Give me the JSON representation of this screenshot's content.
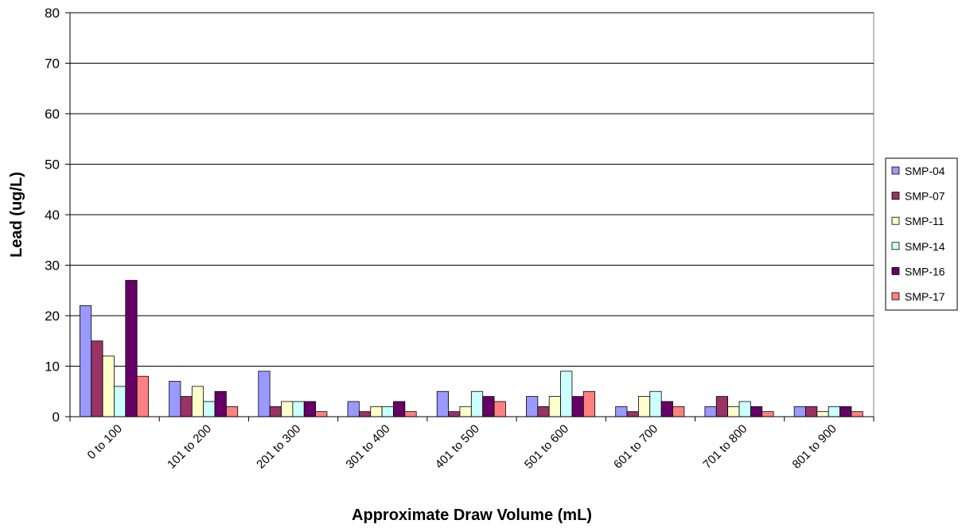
{
  "chart_data": {
    "type": "bar",
    "title": "",
    "xlabel": "Approximate Draw Volume (mL)",
    "ylabel": "Lead (ug/L)",
    "ylim": [
      0,
      80
    ],
    "yticks": [
      0,
      10,
      20,
      30,
      40,
      50,
      60,
      70,
      80
    ],
    "grid": true,
    "legend_position": "right",
    "categories": [
      "0 to 100",
      "101 to 200",
      "201 to 300",
      "301 to 400",
      "401 to 500",
      "501 to 600",
      "601 to 700",
      "701 to 800",
      "801 to 900"
    ],
    "series": [
      {
        "name": "SMP-04",
        "color": "#9999ff",
        "values": [
          22,
          7,
          9,
          3,
          5,
          4,
          2,
          2,
          2
        ]
      },
      {
        "name": "SMP-07",
        "color": "#993366",
        "values": [
          15,
          4,
          2,
          1,
          1,
          2,
          1,
          4,
          2
        ]
      },
      {
        "name": "SMP-11",
        "color": "#ffffcc",
        "values": [
          12,
          6,
          3,
          2,
          2,
          4,
          4,
          2,
          1
        ]
      },
      {
        "name": "SMP-14",
        "color": "#ccffff",
        "values": [
          6,
          3,
          3,
          2,
          5,
          9,
          5,
          3,
          2
        ]
      },
      {
        "name": "SMP-16",
        "color": "#660066",
        "values": [
          27,
          5,
          3,
          3,
          4,
          4,
          3,
          2,
          2
        ]
      },
      {
        "name": "SMP-17",
        "color": "#ff8080",
        "values": [
          8,
          2,
          1,
          1,
          3,
          5,
          2,
          1,
          1
        ]
      }
    ]
  }
}
